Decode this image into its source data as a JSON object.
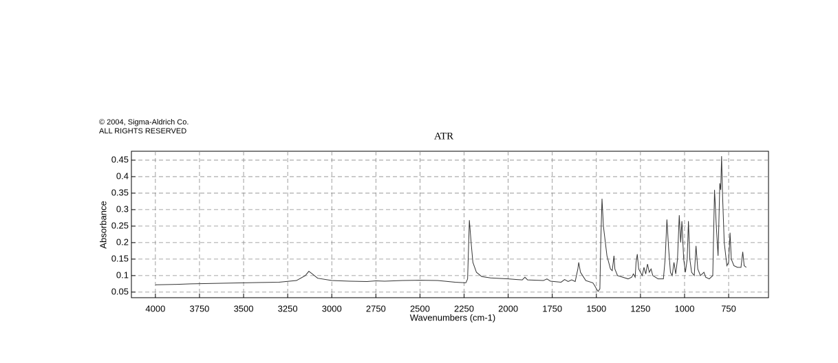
{
  "chart_data": {
    "type": "line",
    "title": "ATR",
    "annotations": [
      "© 2004, Sigma-Aldrich Co.",
      "ALL RIGHTS RESERVED"
    ],
    "xlabel": "Wavenumbers (cm-1)",
    "ylabel": "Absorbance",
    "xlim": [
      4136,
      524
    ],
    "ylim": [
      0.033,
      0.477
    ],
    "xticks": [
      4000,
      3750,
      3500,
      3250,
      3000,
      2750,
      2500,
      2250,
      2000,
      1750,
      1500,
      1250,
      1000,
      750
    ],
    "yticks": [
      0.05,
      0.1,
      0.15,
      0.2,
      0.25,
      0.3,
      0.35,
      0.4,
      0.45
    ],
    "grid": true,
    "color": "#333333",
    "x": [
      4000,
      3900,
      3800,
      3700,
      3600,
      3500,
      3400,
      3300,
      3200,
      3150,
      3130,
      3110,
      3080,
      3000,
      2900,
      2800,
      2750,
      2700,
      2600,
      2500,
      2400,
      2300,
      2240,
      2230,
      2220,
      2210,
      2200,
      2180,
      2150,
      2100,
      2000,
      1950,
      1920,
      1905,
      1890,
      1800,
      1780,
      1760,
      1700,
      1680,
      1660,
      1640,
      1620,
      1605,
      1600,
      1590,
      1560,
      1520,
      1510,
      1500,
      1490,
      1480,
      1475,
      1468,
      1460,
      1440,
      1420,
      1410,
      1400,
      1395,
      1380,
      1320,
      1300,
      1290,
      1280,
      1275,
      1268,
      1260,
      1240,
      1230,
      1220,
      1210,
      1200,
      1190,
      1180,
      1150,
      1120,
      1110,
      1100,
      1090,
      1080,
      1070,
      1060,
      1050,
      1040,
      1030,
      1022,
      1015,
      1005,
      995,
      985,
      978,
      970,
      960,
      945,
      935,
      925,
      910,
      890,
      880,
      860,
      840,
      830,
      820,
      810,
      800,
      795,
      790,
      785,
      775,
      760,
      750,
      742,
      735,
      720,
      700,
      680,
      670,
      662,
      650
    ],
    "values": [
      0.072,
      0.073,
      0.075,
      0.076,
      0.077,
      0.078,
      0.079,
      0.08,
      0.085,
      0.1,
      0.113,
      0.105,
      0.092,
      0.085,
      0.083,
      0.082,
      0.084,
      0.083,
      0.085,
      0.086,
      0.085,
      0.08,
      0.078,
      0.09,
      0.268,
      0.2,
      0.14,
      0.11,
      0.097,
      0.093,
      0.09,
      0.088,
      0.087,
      0.095,
      0.087,
      0.085,
      0.09,
      0.083,
      0.08,
      0.088,
      0.082,
      0.087,
      0.082,
      0.12,
      0.14,
      0.11,
      0.085,
      0.078,
      0.07,
      0.06,
      0.052,
      0.06,
      0.2,
      0.333,
      0.25,
      0.16,
      0.12,
      0.115,
      0.16,
      0.12,
      0.1,
      0.09,
      0.095,
      0.105,
      0.095,
      0.14,
      0.165,
      0.12,
      0.1,
      0.125,
      0.105,
      0.135,
      0.11,
      0.12,
      0.1,
      0.09,
      0.09,
      0.15,
      0.27,
      0.18,
      0.11,
      0.1,
      0.14,
      0.105,
      0.15,
      0.283,
      0.2,
      0.265,
      0.15,
      0.11,
      0.15,
      0.265,
      0.15,
      0.11,
      0.1,
      0.19,
      0.12,
      0.1,
      0.11,
      0.095,
      0.09,
      0.1,
      0.36,
      0.25,
      0.16,
      0.38,
      0.36,
      0.462,
      0.35,
      0.2,
      0.13,
      0.14,
      0.23,
      0.15,
      0.13,
      0.125,
      0.125,
      0.172,
      0.13,
      0.125
    ]
  }
}
